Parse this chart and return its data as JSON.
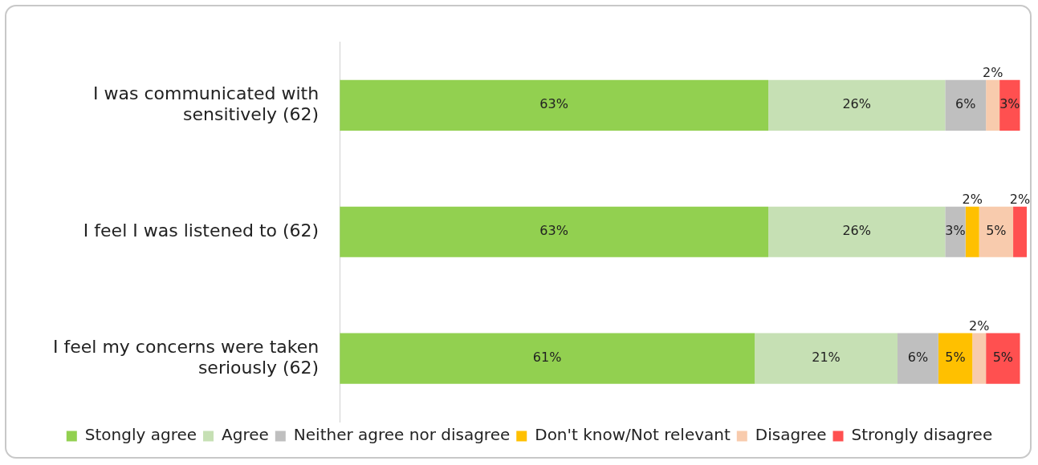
{
  "chart_data": {
    "type": "bar",
    "orientation": "horizontal",
    "stacked": true,
    "legend": "bottom",
    "categories": [
      "I was communicated with sensitively (62)",
      "I feel I was listened to (62)",
      "I feel my concerns were taken seriously (62)"
    ],
    "series": [
      {
        "name": "Stongly agree",
        "color": "#92d050",
        "values": [
          63,
          63,
          61
        ],
        "value_labels": [
          "63%",
          "63%",
          "61%"
        ]
      },
      {
        "name": "Agree",
        "color": "#c6e0b4",
        "values": [
          26,
          26,
          21
        ],
        "value_labels": [
          "26%",
          "26%",
          "21%"
        ]
      },
      {
        "name": "Neither agree nor disagree",
        "color": "#bfbfbf",
        "values": [
          6,
          3,
          6
        ],
        "value_labels": [
          "6%",
          "3%",
          "6%"
        ]
      },
      {
        "name": "Don't know/Not relevant",
        "color": "#ffc000",
        "values": [
          null,
          2,
          5
        ],
        "value_labels": [
          null,
          "2%",
          "5%"
        ]
      },
      {
        "name": "Disagree",
        "color": "#f8cbad",
        "values": [
          2,
          5,
          2
        ],
        "value_labels": [
          "2%",
          "5%",
          "2%"
        ]
      },
      {
        "name": "Strongly disagree",
        "color": "#ff5050",
        "values": [
          3,
          2,
          5
        ],
        "value_labels": [
          "3%",
          "2%",
          "5%"
        ]
      }
    ]
  }
}
